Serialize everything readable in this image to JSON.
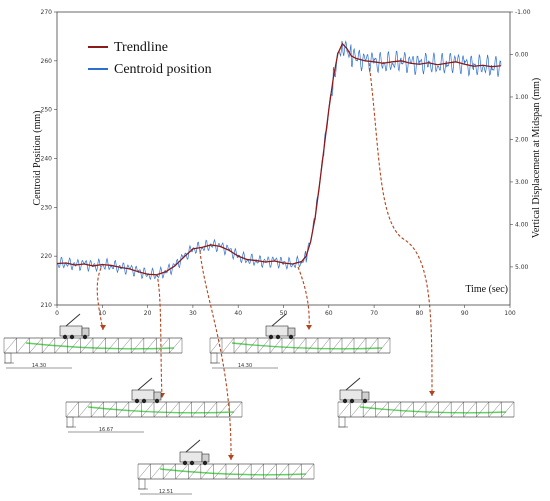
{
  "chart_data": {
    "type": "line",
    "xlabel": "Time (sec)",
    "ylabel": "Centroid Position (mm)",
    "y2label": "Vertical Displacement at Midspan (mm)",
    "xlim": [
      0,
      100
    ],
    "ylim": [
      210,
      270
    ],
    "y2lim": [
      -1.0,
      5.0
    ],
    "xticks": [
      "0",
      "10",
      "20",
      "30",
      "40",
      "50",
      "60",
      "70",
      "80",
      "90",
      "100"
    ],
    "yticks": [
      "210",
      "220",
      "230",
      "240",
      "250",
      "260",
      "270"
    ],
    "y2ticks": [
      "-1.00",
      "0.00",
      "1.00",
      "2.00",
      "3.00",
      "4.00",
      "5.00"
    ],
    "legend_position": "top-left",
    "series": [
      {
        "name": "Trendline",
        "color": "#8b1a1a",
        "x": [
          0,
          2,
          4,
          6,
          8,
          10,
          12,
          14,
          16,
          18,
          20,
          22,
          24,
          26,
          28,
          30,
          32,
          34,
          36,
          38,
          40,
          42,
          44,
          46,
          48,
          50,
          52,
          54,
          55,
          56,
          57,
          58,
          59,
          60,
          61,
          62,
          63,
          64,
          65,
          66,
          68,
          70,
          72,
          74,
          76,
          78,
          80,
          82,
          84,
          86,
          88,
          90,
          92,
          94,
          96,
          98
        ],
        "y": [
          218.5,
          218.6,
          218.2,
          218.4,
          218.0,
          218.3,
          218.1,
          217.7,
          217.4,
          216.8,
          216.3,
          216.2,
          216.8,
          218.0,
          219.8,
          221.5,
          221.8,
          222.3,
          222.0,
          221.2,
          220.0,
          219.3,
          219.1,
          218.8,
          219.0,
          218.6,
          218.4,
          218.9,
          220.0,
          223.0,
          228.0,
          235.0,
          242.5,
          250.0,
          256.5,
          261.5,
          263.5,
          262.5,
          261.0,
          260.5,
          260.0,
          259.8,
          259.5,
          259.8,
          260.0,
          259.5,
          259.3,
          259.6,
          259.2,
          259.5,
          259.8,
          259.3,
          258.9,
          259.1,
          258.8,
          259.0
        ]
      },
      {
        "name": "Centroid position",
        "color": "#2d6fcf",
        "x": [
          0,
          2,
          4,
          6,
          8,
          10,
          12,
          14,
          16,
          18,
          20,
          22,
          24,
          26,
          28,
          30,
          32,
          34,
          36,
          38,
          40,
          42,
          44,
          46,
          48,
          50,
          52,
          54,
          55,
          56,
          57,
          58,
          59,
          60,
          61,
          62,
          63,
          64,
          65,
          66,
          68,
          70,
          72,
          74,
          76,
          78,
          80,
          82,
          84,
          86,
          88,
          90,
          92,
          94,
          96,
          98
        ],
        "y": [
          218.5,
          218.6,
          218.2,
          218.4,
          218.0,
          218.3,
          218.1,
          217.7,
          217.4,
          216.8,
          216.3,
          216.2,
          216.8,
          218.0,
          219.8,
          221.5,
          221.8,
          222.3,
          222.0,
          221.2,
          220.0,
          219.3,
          219.1,
          218.8,
          219.0,
          218.6,
          218.4,
          218.9,
          220.0,
          223.0,
          228.0,
          235.0,
          242.5,
          250.0,
          256.5,
          261.5,
          263.5,
          262.5,
          261.0,
          260.5,
          260.0,
          259.8,
          259.5,
          259.8,
          260.0,
          259.5,
          259.3,
          259.6,
          259.2,
          259.5,
          259.8,
          259.3,
          258.9,
          259.1,
          258.8,
          259.0
        ]
      }
    ]
  },
  "colors": {
    "truss": "#555555",
    "slab_green": "#5fd35f",
    "arrow": "#b3441e"
  },
  "diagrams": [
    {
      "dimension": "14.30"
    },
    {
      "dimension": "14.30"
    },
    {
      "dimension": "16.67"
    },
    {
      "dimension": ""
    },
    {
      "dimension": "12.51"
    }
  ]
}
